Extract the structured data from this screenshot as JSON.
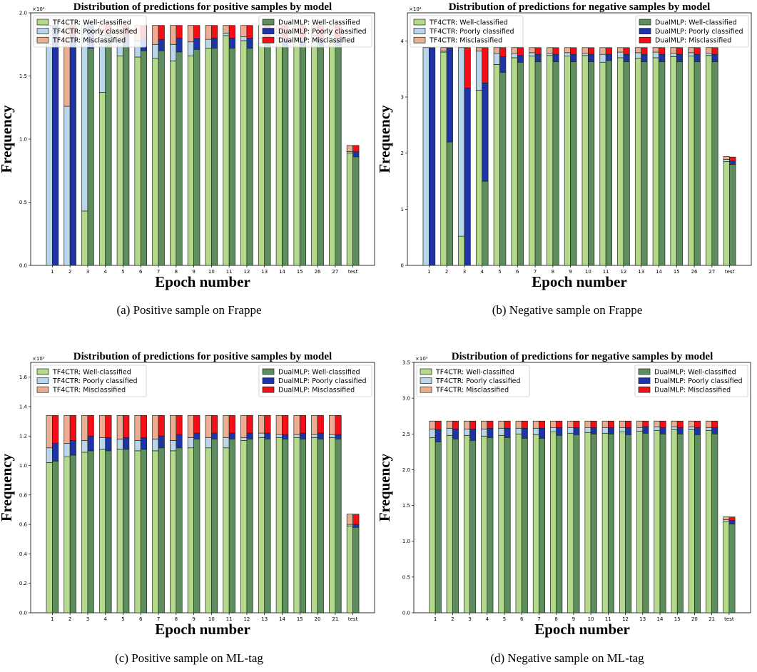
{
  "colors": {
    "tf4_well": "#b5d98c",
    "tf4_poor": "#b9d6ea",
    "tf4_mis": "#eeac92",
    "dual_well": "#5e8e5e",
    "dual_poor": "#1f33a6",
    "dual_mis": "#f70d17",
    "edge": "#1a2a1a"
  },
  "legend": {
    "left": [
      "TF4CTR: Well-classified",
      "TF4CTR: Poorly classified",
      "TF4CTR: Misclassified"
    ],
    "right": [
      "DualMLP: Well-classified",
      "DualMLP: Poorly classified",
      "DualMLP: Misclassified"
    ]
  },
  "captions": [
    "(a) Positive sample on Frappe",
    "(b) Negative sample on Frappe",
    "(c) Positive sample on ML-tag",
    "(d) Negative sample on ML-tag"
  ],
  "chart_data": [
    {
      "type": "bar",
      "title": "Distribution of predictions for positive samples by model",
      "xlabel": "Epoch number",
      "ylabel": "Frequency",
      "scale_label": "×10⁴",
      "ylim": [
        0,
        2.0
      ],
      "yticks": [
        "0.0",
        "0.5",
        "1.0",
        "1.5",
        "2.0"
      ],
      "categories": [
        "1",
        "2",
        "3",
        "4",
        "5",
        "6",
        "7",
        "8",
        "9",
        "10",
        "11",
        "12",
        "13",
        "14",
        "15",
        "26",
        "27",
        "test"
      ],
      "series": [
        {
          "name": "TF4CTR: Well-classified",
          "values": [
            0,
            0,
            0.43,
            1.37,
            1.66,
            1.65,
            1.64,
            1.62,
            1.66,
            1.72,
            1.82,
            1.78,
            1.76,
            1.8,
            1.78,
            1.8,
            1.8,
            0.89
          ]
        },
        {
          "name": "TF4CTR: Poorly classified",
          "values": [
            1.9,
            1.26,
            1.47,
            0.45,
            0.14,
            0.13,
            0.11,
            0.13,
            0.11,
            0.07,
            0.02,
            0.03,
            0.04,
            0.02,
            0.02,
            0.02,
            0.02,
            0.01
          ]
        },
        {
          "name": "TF4CTR: Misclassified",
          "values": [
            0,
            0.64,
            0,
            0.08,
            0.1,
            0.12,
            0.15,
            0.15,
            0.13,
            0.11,
            0.06,
            0.09,
            0.1,
            0.08,
            0.1,
            0.08,
            0.08,
            0.05
          ]
        },
        {
          "name": "DualMLP: Well-classified",
          "values": [
            0,
            0,
            1.72,
            1.82,
            1.73,
            1.7,
            1.7,
            1.69,
            1.71,
            1.72,
            1.72,
            1.72,
            1.74,
            1.74,
            1.74,
            1.74,
            1.74,
            0.86
          ]
        },
        {
          "name": "DualMLP: Poorly classified",
          "values": [
            1.9,
            1.82,
            0.18,
            0.02,
            0.09,
            0.1,
            0.09,
            0.11,
            0.09,
            0.08,
            0.08,
            0.08,
            0.06,
            0.06,
            0.06,
            0.06,
            0.06,
            0.04
          ]
        },
        {
          "name": "DualMLP: Misclassified",
          "values": [
            0,
            0.08,
            0,
            0.06,
            0.08,
            0.1,
            0.11,
            0.1,
            0.1,
            0.1,
            0.1,
            0.1,
            0.1,
            0.1,
            0.1,
            0.1,
            0.1,
            0.05
          ]
        }
      ]
    },
    {
      "type": "bar",
      "title": "Distribution of predictions for negative samples by model",
      "xlabel": "Epoch number",
      "ylabel": "Frequency",
      "scale_label": "×10⁴",
      "ylim": [
        0,
        4.5
      ],
      "yticks": [
        "0",
        "1",
        "2",
        "3",
        "4"
      ],
      "categories": [
        "1",
        "2",
        "3",
        "4",
        "5",
        "6",
        "7",
        "8",
        "9",
        "10",
        "11",
        "12",
        "13",
        "14",
        "15",
        "26",
        "27",
        "test"
      ],
      "series": [
        {
          "name": "TF4CTR: Well-classified",
          "values": [
            0,
            3.8,
            0.52,
            3.12,
            3.58,
            3.7,
            3.73,
            3.74,
            3.73,
            3.74,
            3.62,
            3.7,
            3.69,
            3.7,
            3.72,
            3.73,
            3.74,
            1.85
          ]
        },
        {
          "name": "TF4CTR: Poorly classified",
          "values": [
            3.88,
            0.02,
            3.36,
            0.7,
            0.2,
            0.08,
            0.06,
            0.04,
            0.06,
            0.04,
            0.14,
            0.1,
            0.1,
            0.1,
            0.06,
            0.06,
            0.04,
            0.04
          ]
        },
        {
          "name": "TF4CTR: Misclassified",
          "values": [
            0,
            0.06,
            0,
            0.06,
            0.1,
            0.1,
            0.09,
            0.1,
            0.09,
            0.1,
            0.12,
            0.08,
            0.09,
            0.08,
            0.1,
            0.09,
            0.1,
            0.05
          ]
        },
        {
          "name": "DualMLP: Well-classified",
          "values": [
            0,
            2.2,
            0,
            1.5,
            3.44,
            3.62,
            3.63,
            3.63,
            3.63,
            3.63,
            3.65,
            3.63,
            3.63,
            3.63,
            3.63,
            3.63,
            3.63,
            1.8
          ]
        },
        {
          "name": "DualMLP: Poorly classified",
          "values": [
            3.88,
            1.68,
            3.16,
            1.75,
            0.28,
            0.12,
            0.13,
            0.13,
            0.13,
            0.13,
            0.11,
            0.13,
            0.13,
            0.13,
            0.13,
            0.13,
            0.13,
            0.06
          ]
        },
        {
          "name": "DualMLP: Misclassified",
          "values": [
            0,
            0,
            0.72,
            0.63,
            0.16,
            0.14,
            0.12,
            0.12,
            0.12,
            0.12,
            0.12,
            0.12,
            0.12,
            0.12,
            0.12,
            0.12,
            0.12,
            0.07
          ]
        }
      ]
    },
    {
      "type": "bar",
      "title": "Distribution of predictions for positive samples by model",
      "xlabel": "Epoch number",
      "ylabel": "Frequency",
      "scale_label": "×10⁵",
      "ylim": [
        0,
        1.7
      ],
      "yticks": [
        "0.0",
        "0.2",
        "0.4",
        "0.6",
        "0.8",
        "1.0",
        "1.2",
        "1.4",
        "1.6"
      ],
      "categories": [
        "1",
        "2",
        "3",
        "4",
        "5",
        "6",
        "7",
        "8",
        "9",
        "10",
        "11",
        "12",
        "13",
        "14",
        "15",
        "20",
        "21",
        "test"
      ],
      "series": [
        {
          "name": "TF4CTR: Well-classified",
          "values": [
            1.02,
            1.06,
            1.09,
            1.11,
            1.11,
            1.1,
            1.1,
            1.1,
            1.12,
            1.12,
            1.12,
            1.17,
            1.19,
            1.19,
            1.19,
            1.19,
            1.19,
            0.59
          ]
        },
        {
          "name": "TF4CTR: Poorly classified",
          "values": [
            0.1,
            0.09,
            0.08,
            0.08,
            0.07,
            0.07,
            0.08,
            0.07,
            0.07,
            0.07,
            0.07,
            0.02,
            0.03,
            0.02,
            0.02,
            0.02,
            0.02,
            0.01
          ]
        },
        {
          "name": "TF4CTR: Misclassified",
          "values": [
            0.22,
            0.19,
            0.17,
            0.15,
            0.16,
            0.17,
            0.16,
            0.17,
            0.15,
            0.15,
            0.15,
            0.15,
            0.12,
            0.13,
            0.13,
            0.13,
            0.13,
            0.07
          ]
        },
        {
          "name": "DualMLP: Well-classified",
          "values": [
            1.03,
            1.07,
            1.1,
            1.1,
            1.11,
            1.11,
            1.12,
            1.12,
            1.18,
            1.18,
            1.18,
            1.18,
            1.18,
            1.18,
            1.18,
            1.18,
            1.18,
            0.58
          ]
        },
        {
          "name": "DualMLP: Poorly classified",
          "values": [
            0.12,
            0.1,
            0.1,
            0.09,
            0.08,
            0.08,
            0.08,
            0.09,
            0.04,
            0.04,
            0.04,
            0.04,
            0.04,
            0.03,
            0.04,
            0.04,
            0.03,
            0.02
          ]
        },
        {
          "name": "DualMLP: Misclassified",
          "values": [
            0.19,
            0.17,
            0.14,
            0.15,
            0.15,
            0.15,
            0.14,
            0.13,
            0.12,
            0.12,
            0.12,
            0.12,
            0.12,
            0.13,
            0.12,
            0.12,
            0.13,
            0.07
          ]
        }
      ]
    },
    {
      "type": "bar",
      "title": "Distribution of predictions for negative samples by model",
      "xlabel": "Epoch number",
      "ylabel": "Frequency",
      "scale_label": "×10⁵",
      "ylim": [
        0,
        3.5
      ],
      "yticks": [
        "0.0",
        "0.5",
        "1.0",
        "1.5",
        "2.0",
        "2.5",
        "3.0",
        "3.5"
      ],
      "categories": [
        "1",
        "2",
        "3",
        "4",
        "5",
        "6",
        "7",
        "8",
        "9",
        "10",
        "11",
        "12",
        "13",
        "14",
        "15",
        "20",
        "21",
        "test"
      ],
      "series": [
        {
          "name": "TF4CTR: Well-classified",
          "values": [
            2.45,
            2.48,
            2.48,
            2.47,
            2.48,
            2.5,
            2.49,
            2.53,
            2.51,
            2.52,
            2.51,
            2.53,
            2.54,
            2.55,
            2.56,
            2.56,
            2.55,
            1.28
          ]
        },
        {
          "name": "TF4CTR: Poorly classified",
          "values": [
            0.12,
            0.1,
            0.09,
            0.1,
            0.1,
            0.08,
            0.09,
            0.06,
            0.08,
            0.07,
            0.08,
            0.06,
            0.05,
            0.05,
            0.04,
            0.04,
            0.04,
            0.02
          ]
        },
        {
          "name": "TF4CTR: Misclassified",
          "values": [
            0.11,
            0.1,
            0.11,
            0.11,
            0.1,
            0.1,
            0.1,
            0.09,
            0.09,
            0.09,
            0.09,
            0.09,
            0.09,
            0.08,
            0.08,
            0.08,
            0.09,
            0.04
          ]
        },
        {
          "name": "DualMLP: Well-classified",
          "values": [
            2.39,
            2.43,
            2.41,
            2.45,
            2.45,
            2.44,
            2.44,
            2.48,
            2.49,
            2.5,
            2.5,
            2.49,
            2.51,
            2.5,
            2.5,
            2.49,
            2.5,
            1.24
          ]
        },
        {
          "name": "DualMLP: Poorly classified",
          "values": [
            0.17,
            0.14,
            0.16,
            0.13,
            0.13,
            0.14,
            0.14,
            0.11,
            0.1,
            0.09,
            0.09,
            0.1,
            0.09,
            0.09,
            0.09,
            0.1,
            0.09,
            0.05
          ]
        },
        {
          "name": "DualMLP: Misclassified",
          "values": [
            0.12,
            0.11,
            0.11,
            0.1,
            0.1,
            0.1,
            0.1,
            0.09,
            0.09,
            0.09,
            0.09,
            0.09,
            0.08,
            0.09,
            0.09,
            0.09,
            0.09,
            0.05
          ]
        }
      ]
    }
  ]
}
